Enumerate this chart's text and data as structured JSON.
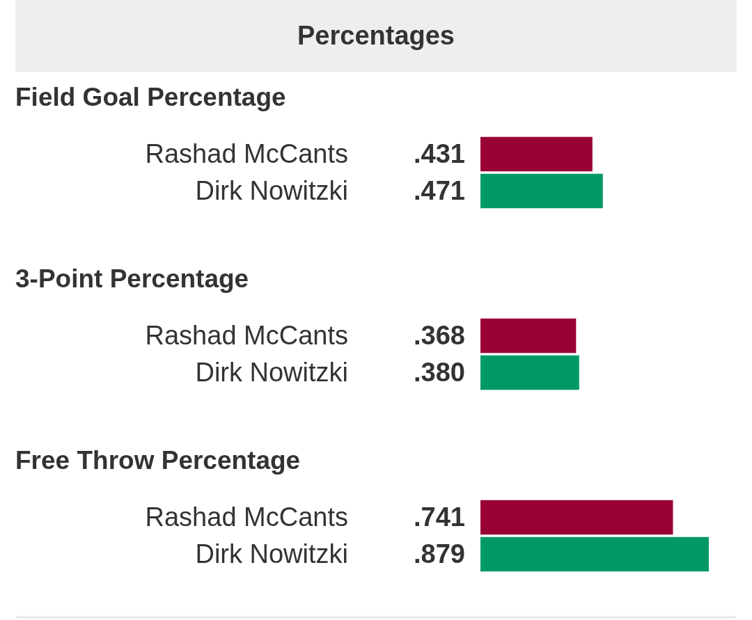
{
  "chart_data": [
    {
      "type": "other",
      "title": "Percentages"
    },
    {
      "type": "bar",
      "orientation": "horizontal",
      "title": "Field Goal Percentage",
      "categories": [
        "Rashad McCants",
        "Dirk Nowitzki"
      ],
      "values": [
        0.431,
        0.471
      ],
      "colors": [
        "#990033",
        "#009966"
      ],
      "value_labels": [
        ".431",
        ".471"
      ],
      "tick_labels": "y"
    },
    {
      "type": "bar",
      "orientation": "horizontal",
      "title": "3-Point Percentage",
      "categories": [
        "Rashad McCants",
        "Dirk Nowitzki"
      ],
      "values": [
        0.368,
        0.38
      ],
      "colors": [
        "#990033",
        "#009966"
      ],
      "value_labels": [
        ".368",
        ".380"
      ],
      "tick_labels": "y"
    },
    {
      "type": "bar",
      "orientation": "horizontal",
      "title": "Free Throw Percentage",
      "categories": [
        "Rashad McCants",
        "Dirk Nowitzki"
      ],
      "values": [
        0.741,
        0.879
      ],
      "colors": [
        "#990033",
        "#009966"
      ],
      "value_labels": [
        ".741",
        ".879"
      ],
      "tick_labels": "y"
    }
  ]
}
